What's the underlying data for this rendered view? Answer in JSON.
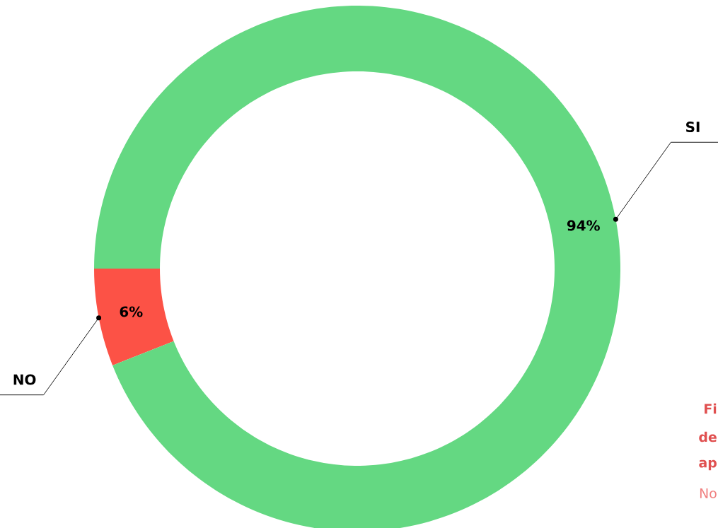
{
  "chart_data": {
    "type": "donut",
    "categories": [
      "NO",
      "SI"
    ],
    "values": [
      6,
      94
    ],
    "colors": [
      "#fc5246",
      "#64d882"
    ],
    "value_labels": [
      "6%",
      "94%"
    ],
    "annotations": [
      "Fi",
      "de",
      "ap",
      "No"
    ]
  }
}
